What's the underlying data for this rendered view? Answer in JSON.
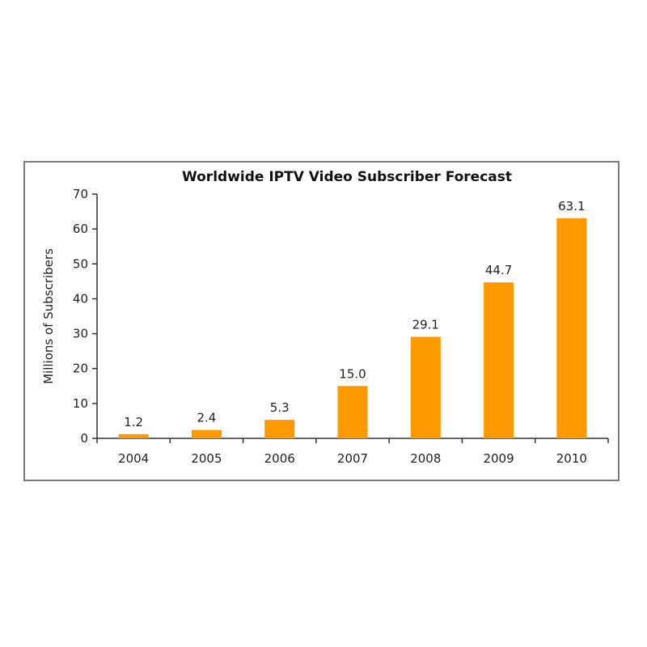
{
  "chart_data": {
    "type": "bar",
    "title": "Worldwide IPTV Video Subscriber Forecast",
    "xlabel": "",
    "ylabel": "Millions of Subscribers",
    "categories": [
      "2004",
      "2005",
      "2006",
      "2007",
      "2008",
      "2009",
      "2010"
    ],
    "values": [
      1.2,
      2.4,
      5.3,
      15.0,
      29.1,
      44.7,
      63.1
    ],
    "data_labels": [
      "1.2",
      "2.4",
      "5.3",
      "15.0",
      "29.1",
      "44.7",
      "63.1"
    ],
    "ylim": [
      0,
      70
    ],
    "yticks": [
      0,
      10,
      20,
      30,
      40,
      50,
      60,
      70
    ],
    "grid": false,
    "legend": "none",
    "bar_color": "#ff9900"
  }
}
